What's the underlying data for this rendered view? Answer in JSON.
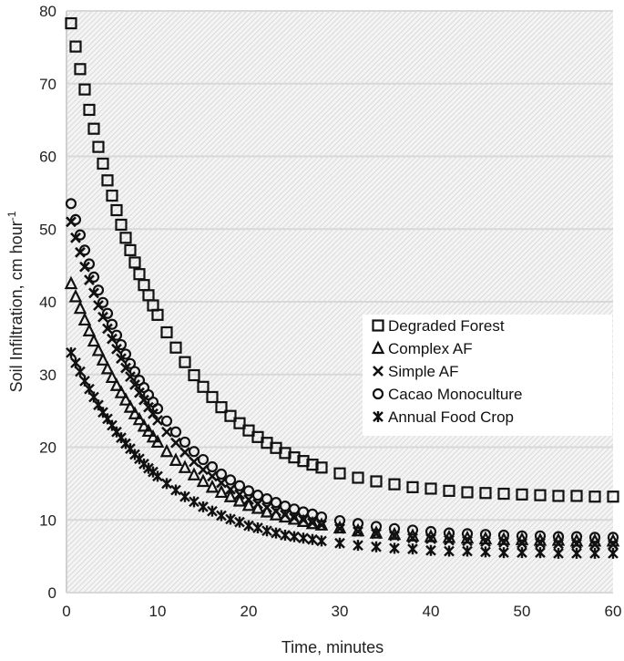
{
  "chart_data": {
    "type": "scatter",
    "title": "",
    "xlabel": "Time, minutes",
    "ylabel": "Soil Infiltration, cm hour",
    "ylabel_superscript": "-1",
    "xlim": [
      0,
      60
    ],
    "ylim": [
      0,
      80
    ],
    "xticks": [
      "0",
      "10",
      "20",
      "30",
      "40",
      "50",
      "60"
    ],
    "yticks": [
      "0",
      "10",
      "20",
      "30",
      "40",
      "50",
      "60",
      "70",
      "80"
    ],
    "grid": "horizontal",
    "legend_placement": "center-right",
    "x": [
      0.5,
      1,
      1.5,
      2,
      2.5,
      3,
      3.5,
      4,
      4.5,
      5,
      5.5,
      6,
      6.5,
      7,
      7.5,
      8,
      8.5,
      9,
      9.5,
      10,
      11,
      12,
      13,
      14,
      15,
      16,
      17,
      18,
      19,
      20,
      21,
      22,
      23,
      24,
      25,
      26,
      27,
      28,
      30,
      32,
      34,
      36,
      38,
      40,
      42,
      44,
      46,
      48,
      50,
      52,
      54,
      56,
      58,
      60
    ],
    "series": [
      {
        "name": "Degraded Forest",
        "marker": "square",
        "values": [
          78.3,
          75.1,
          72.0,
          69.2,
          66.4,
          63.8,
          61.3,
          59.0,
          56.7,
          54.6,
          52.6,
          50.6,
          48.8,
          47.1,
          45.4,
          43.8,
          42.3,
          40.9,
          39.5,
          38.2,
          35.8,
          33.7,
          31.7,
          29.9,
          28.3,
          26.9,
          25.5,
          24.3,
          23.3,
          22.3,
          21.4,
          20.6,
          19.9,
          19.2,
          18.6,
          18.1,
          17.6,
          17.2,
          16.4,
          15.8,
          15.3,
          14.9,
          14.5,
          14.3,
          14.0,
          13.8,
          13.7,
          13.6,
          13.5,
          13.4,
          13.3,
          13.3,
          13.2,
          13.2
        ]
      },
      {
        "name": "Complex AF",
        "marker": "triangle",
        "values": [
          42.5,
          40.7,
          39.1,
          37.5,
          36.0,
          34.6,
          33.3,
          32.0,
          30.8,
          29.6,
          28.5,
          27.5,
          26.5,
          25.5,
          24.6,
          23.8,
          22.9,
          22.2,
          21.4,
          20.7,
          19.4,
          18.2,
          17.2,
          16.2,
          15.3,
          14.5,
          13.8,
          13.2,
          12.6,
          12.0,
          11.6,
          11.1,
          10.7,
          10.4,
          10.1,
          9.8,
          9.5,
          9.3,
          8.9,
          8.5,
          8.2,
          8.0,
          7.8,
          7.7,
          7.6,
          7.5,
          7.4,
          7.3,
          7.3,
          7.2,
          7.2,
          7.1,
          7.1,
          7.1
        ]
      },
      {
        "name": "Simple AF",
        "marker": "x",
        "values": [
          51.0,
          48.8,
          46.8,
          44.8,
          43.0,
          41.2,
          39.5,
          37.9,
          36.3,
          34.9,
          33.5,
          32.2,
          30.9,
          29.7,
          28.6,
          27.5,
          26.5,
          25.5,
          24.6,
          23.7,
          22.1,
          20.6,
          19.3,
          18.0,
          16.9,
          16.0,
          15.1,
          14.2,
          13.5,
          12.8,
          12.2,
          11.7,
          11.2,
          10.7,
          10.3,
          10.0,
          9.6,
          9.3,
          8.8,
          8.4,
          8.1,
          7.8,
          7.5,
          7.4,
          7.2,
          7.1,
          7.0,
          6.9,
          6.8,
          6.8,
          6.7,
          6.7,
          6.6,
          6.6
        ]
      },
      {
        "name": "Cacao Monoculture",
        "marker": "circle",
        "values": [
          53.5,
          51.3,
          49.2,
          47.1,
          45.2,
          43.4,
          41.6,
          39.9,
          38.4,
          36.9,
          35.4,
          34.1,
          32.8,
          31.5,
          30.4,
          29.2,
          28.2,
          27.2,
          26.2,
          25.3,
          23.6,
          22.1,
          20.7,
          19.4,
          18.3,
          17.3,
          16.3,
          15.5,
          14.7,
          14.0,
          13.4,
          12.9,
          12.4,
          11.9,
          11.5,
          11.1,
          10.8,
          10.4,
          9.9,
          9.5,
          9.1,
          8.8,
          8.6,
          8.4,
          8.2,
          8.1,
          8.0,
          7.9,
          7.8,
          7.8,
          7.7,
          7.7,
          7.6,
          7.6
        ]
      },
      {
        "name": "Annual Food Crop",
        "marker": "asterisk",
        "values": [
          33.0,
          31.6,
          30.4,
          29.1,
          28.0,
          26.9,
          25.8,
          24.8,
          23.9,
          23.0,
          22.1,
          21.3,
          20.5,
          19.8,
          19.0,
          18.4,
          17.7,
          17.1,
          16.6,
          16.0,
          15.0,
          14.1,
          13.2,
          12.5,
          11.8,
          11.2,
          10.6,
          10.1,
          9.7,
          9.2,
          8.9,
          8.5,
          8.2,
          7.9,
          7.7,
          7.5,
          7.3,
          7.1,
          6.8,
          6.5,
          6.3,
          6.1,
          6.0,
          5.8,
          5.7,
          5.7,
          5.6,
          5.5,
          5.5,
          5.5,
          5.4,
          5.4,
          5.4,
          5.4
        ]
      }
    ]
  }
}
